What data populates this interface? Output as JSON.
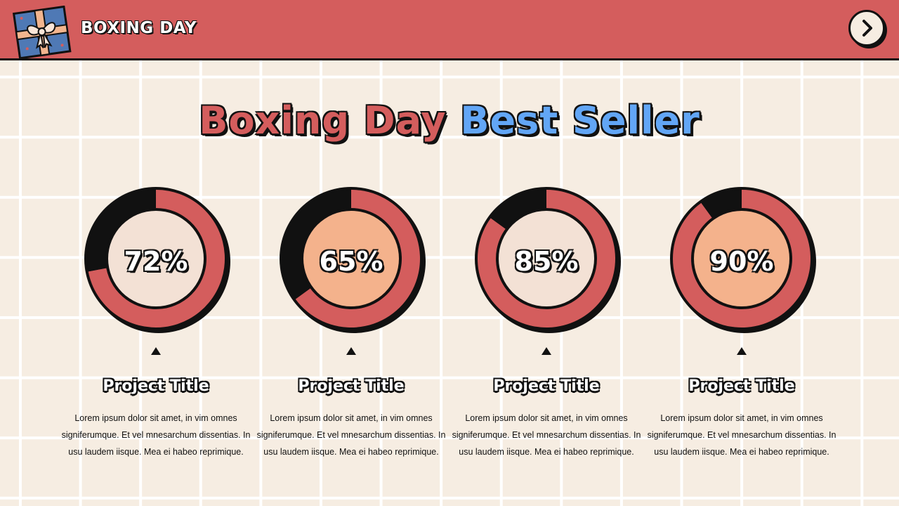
{
  "header": {
    "brand": "BOXING DAY",
    "next_icon": "chevron-right-icon",
    "gift_icon": "gift-box-icon"
  },
  "title": {
    "part1": "Boxing Day ",
    "part2": "Best Seller"
  },
  "colors": {
    "red": "#d45d5d",
    "blue": "#62a6f6",
    "dark": "#111111",
    "cream": "#f3e1d5",
    "peach": "#f4b28c",
    "background": "#f6ede2"
  },
  "cards": [
    {
      "percent_label": "72%",
      "value": 72,
      "center_color": "#f3e1d5",
      "title": "Project Title",
      "desc": "Lorem  ipsum dolor sit amet, in vim omnes signiferumque. Et vel mnesarchum dissentias. In usu laudem iisque. Mea ei habeo reprimique."
    },
    {
      "percent_label": "65%",
      "value": 65,
      "center_color": "#f4b28c",
      "title": "Project Title",
      "desc": "Lorem  ipsum dolor sit amet, in vim omnes signiferumque. Et vel mnesarchum dissentias. In usu laudem iisque. Mea ei habeo reprimique."
    },
    {
      "percent_label": "85%",
      "value": 85,
      "center_color": "#f3e1d5",
      "title": "Project Title",
      "desc": "Lorem  ipsum dolor sit amet, in vim omnes signiferumque. Et vel mnesarchum dissentias. In usu laudem iisque. Mea ei habeo reprimique."
    },
    {
      "percent_label": "90%",
      "value": 90,
      "center_color": "#f4b28c",
      "title": "Project Title",
      "desc": "Lorem  ipsum dolor sit amet, in vim omnes signiferumque. Et vel mnesarchum dissentias. In usu laudem iisque. Mea ei habeo reprimique."
    }
  ]
}
